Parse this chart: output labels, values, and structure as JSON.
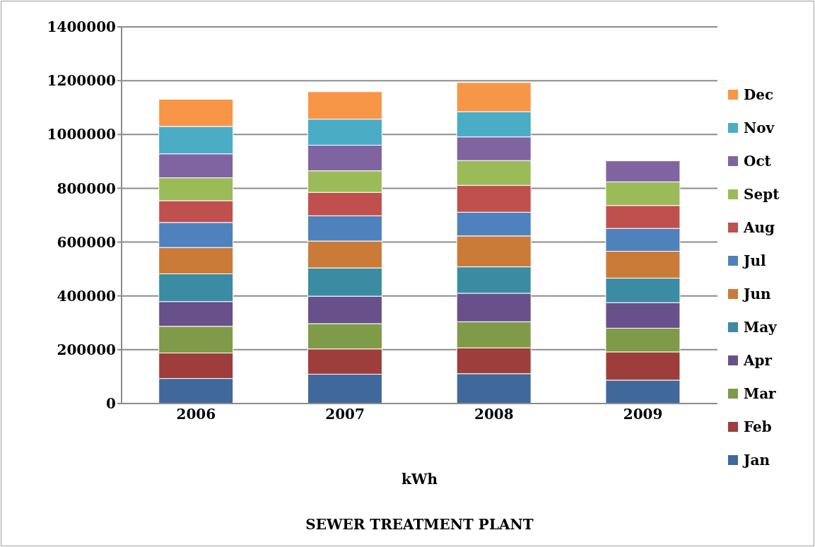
{
  "chart_data": {
    "type": "bar",
    "stacked": true,
    "xlabel": "kWh",
    "annotations": [
      "SEWER TREATMENT PLANT"
    ],
    "categories": [
      "2006",
      "2007",
      "2008",
      "2009"
    ],
    "series": [
      {
        "name": "Jan",
        "color": "#41689b",
        "values": [
          93000,
          109000,
          111000,
          87000
        ]
      },
      {
        "name": "Feb",
        "color": "#9d3e3d",
        "values": [
          95000,
          94000,
          96000,
          105000
        ]
      },
      {
        "name": "Mar",
        "color": "#7f9a48",
        "values": [
          99000,
          94000,
          97000,
          88000
        ]
      },
      {
        "name": "Apr",
        "color": "#68508a",
        "values": [
          92000,
          102000,
          106000,
          95000
        ]
      },
      {
        "name": "May",
        "color": "#3b8ba3",
        "values": [
          103000,
          105000,
          98000,
          91000
        ]
      },
      {
        "name": "Jun",
        "color": "#cb7b38",
        "values": [
          98000,
          100000,
          115000,
          100000
        ]
      },
      {
        "name": "Jul",
        "color": "#4f81bd",
        "values": [
          93000,
          94000,
          88000,
          85000
        ]
      },
      {
        "name": "Aug",
        "color": "#c0504d",
        "values": [
          81000,
          87000,
          100000,
          85000
        ]
      },
      {
        "name": "Sept",
        "color": "#9bbb59",
        "values": [
          85000,
          80000,
          92000,
          88000
        ]
      },
      {
        "name": "Oct",
        "color": "#8064a2",
        "values": [
          89000,
          95000,
          88000,
          78000
        ]
      },
      {
        "name": "Nov",
        "color": "#4bacc6",
        "values": [
          102000,
          97000,
          94000,
          null
        ]
      },
      {
        "name": "Dec",
        "color": "#f79646",
        "values": [
          101000,
          102000,
          108000,
          null
        ]
      }
    ],
    "ylim": [
      0,
      1400000
    ],
    "yticks": [
      0,
      200000,
      400000,
      600000,
      800000,
      1000000,
      1200000,
      1400000
    ],
    "grid": "y",
    "legend": "right"
  }
}
